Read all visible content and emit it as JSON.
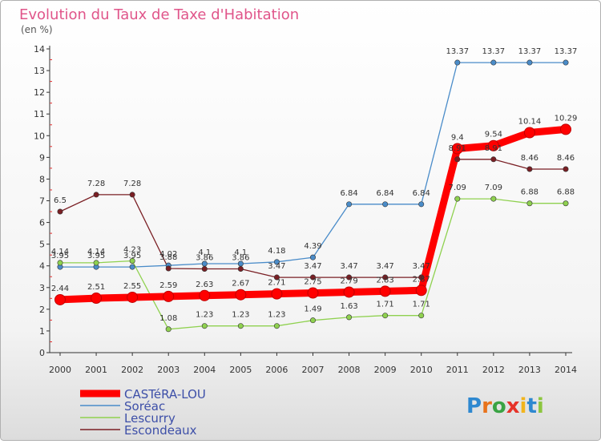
{
  "chart_data": {
    "type": "line",
    "title": "Evolution du Taux de Taxe d'Habitation",
    "subtitle": "(en %)",
    "categories": [
      "2000",
      "2001",
      "2002",
      "2003",
      "2004",
      "2005",
      "2006",
      "2007",
      "2008",
      "2009",
      "2010",
      "2011",
      "2012",
      "2013",
      "2014"
    ],
    "ylim": [
      0,
      14
    ],
    "yticks": [
      0,
      1,
      2,
      3,
      4,
      5,
      6,
      7,
      8,
      9,
      10,
      11,
      12,
      13,
      14
    ],
    "grid": false,
    "legend_position": "bottom-left",
    "series": [
      {
        "name": "CASTéRA-LOU",
        "color": "#ff0000",
        "values": [
          2.44,
          2.51,
          2.55,
          2.59,
          2.63,
          2.67,
          2.71,
          2.75,
          2.79,
          2.83,
          2.87,
          9.4,
          9.54,
          10.14,
          10.29
        ]
      },
      {
        "name": "Soréac",
        "color": "#4a8cc9",
        "values": [
          3.95,
          3.95,
          3.95,
          4.02,
          4.1,
          4.1,
          4.18,
          4.39,
          6.84,
          6.84,
          6.84,
          13.37,
          13.37,
          13.37,
          13.37
        ]
      },
      {
        "name": "Lescurry",
        "color": "#8fd14f",
        "values": [
          4.14,
          4.14,
          4.23,
          1.08,
          1.23,
          1.23,
          1.23,
          1.49,
          1.63,
          1.71,
          1.71,
          7.09,
          7.09,
          6.88,
          6.88
        ]
      },
      {
        "name": "Escondeaux",
        "color": "#7a1f24",
        "values": [
          6.5,
          7.28,
          7.28,
          3.88,
          3.86,
          3.86,
          3.47,
          3.47,
          3.47,
          3.47,
          3.47,
          8.91,
          8.91,
          8.46,
          8.46
        ]
      }
    ],
    "value_labels": {
      "CASTéRA-LOU": [
        "2.44",
        "2.51",
        "2.55",
        "2.59",
        "2.63",
        "2.67",
        "2.71",
        "2.75",
        "2.79",
        "2.83",
        "2.87",
        "9.4",
        "9.54",
        "10.14",
        "10.29"
      ],
      "Soréac": [
        "3.95",
        "3.95",
        "3.95",
        "4.02",
        "4.1",
        "4.1",
        "4.18",
        "4.39",
        "6.84",
        "6.84",
        "6.84",
        "13.37",
        "13.37",
        "13.37",
        "13.37"
      ],
      "Lescurry": [
        "4.14",
        "4.14",
        "4.23",
        "1.08",
        "1.23",
        "1.23",
        "1.23",
        "1.49",
        "1.63",
        "1.71",
        "1.71",
        "7.09",
        "7.09",
        "6.88",
        "6.88"
      ],
      "Escondeaux": [
        "6.5",
        "7.28",
        "7.28",
        "3.88",
        "3.86",
        "3.86",
        "3.47",
        "3.47",
        "3.47",
        "3.47",
        "3.47",
        "8.91",
        "8.91",
        "8.46",
        "8.46"
      ]
    }
  },
  "brand": {
    "logo_text": "Proxiti",
    "letters": [
      "P",
      "r",
      "o",
      "x",
      "i",
      "t",
      "i"
    ],
    "letter_colors": [
      "#2e88d0",
      "#e8731c",
      "#3aa344",
      "#e63329",
      "#f2b51d",
      "#2e88d0",
      "#8cc63f"
    ]
  }
}
